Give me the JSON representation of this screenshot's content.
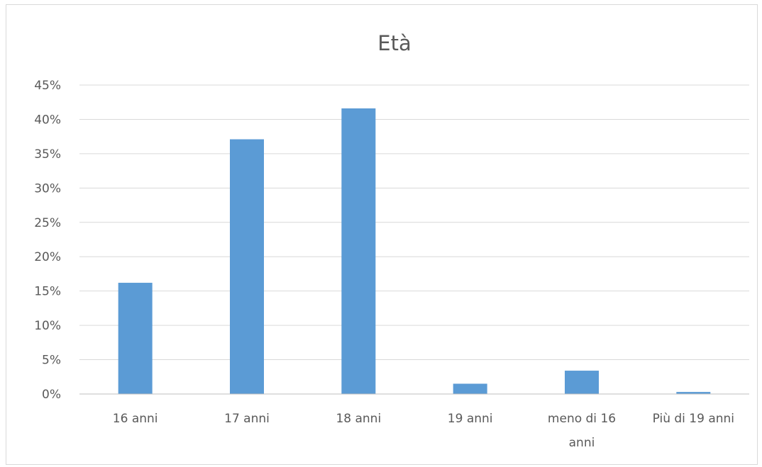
{
  "chart_data": {
    "type": "bar",
    "title": "Età",
    "categories": [
      [
        "16 anni"
      ],
      [
        "17 anni"
      ],
      [
        "18 anni"
      ],
      [
        "19 anni"
      ],
      [
        "meno di 16",
        "anni"
      ],
      [
        "Più di 19 anni"
      ]
    ],
    "values": [
      16.2,
      37.1,
      41.6,
      1.5,
      3.4,
      0.3
    ],
    "ylim": [
      0,
      45
    ],
    "yticks": [
      0,
      5,
      10,
      15,
      20,
      25,
      30,
      35,
      40,
      45
    ],
    "ytick_suffix": "%",
    "grid": true,
    "legend": false,
    "bar_color": "#5b9bd5"
  }
}
